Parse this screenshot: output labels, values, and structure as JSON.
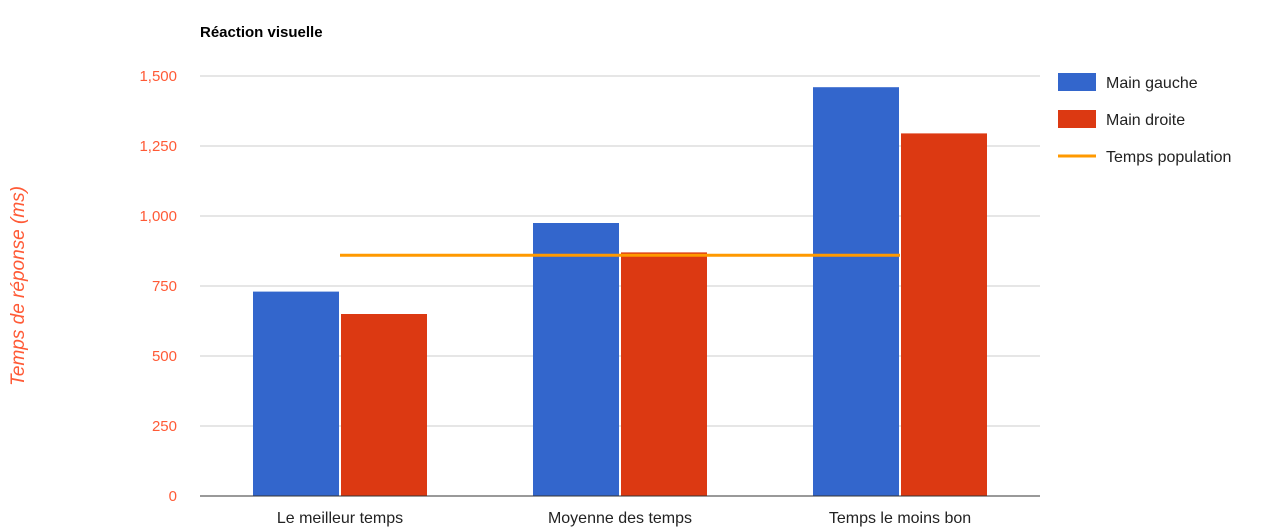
{
  "chart_data": {
    "type": "bar",
    "title": "Réaction visuelle",
    "xlabel": "",
    "ylabel": "Temps de réponse (ms)",
    "ylim": [
      0,
      1500
    ],
    "yticks": [
      "0",
      "250",
      "500",
      "750",
      "1,000",
      "1,250",
      "1,500"
    ],
    "categories": [
      "Le meilleur temps",
      "Moyenne des temps",
      "Temps le moins bon"
    ],
    "series": [
      {
        "name": "Main gauche",
        "values": [
          730,
          975,
          1460
        ],
        "color": "#3366cc"
      },
      {
        "name": "Main droite",
        "values": [
          650,
          870,
          1295
        ],
        "color": "#dc3912"
      }
    ],
    "line_series": {
      "name": "Temps population",
      "values": [
        860,
        860,
        860
      ],
      "color": "#ff9900"
    },
    "grid": true,
    "legend": "right"
  }
}
